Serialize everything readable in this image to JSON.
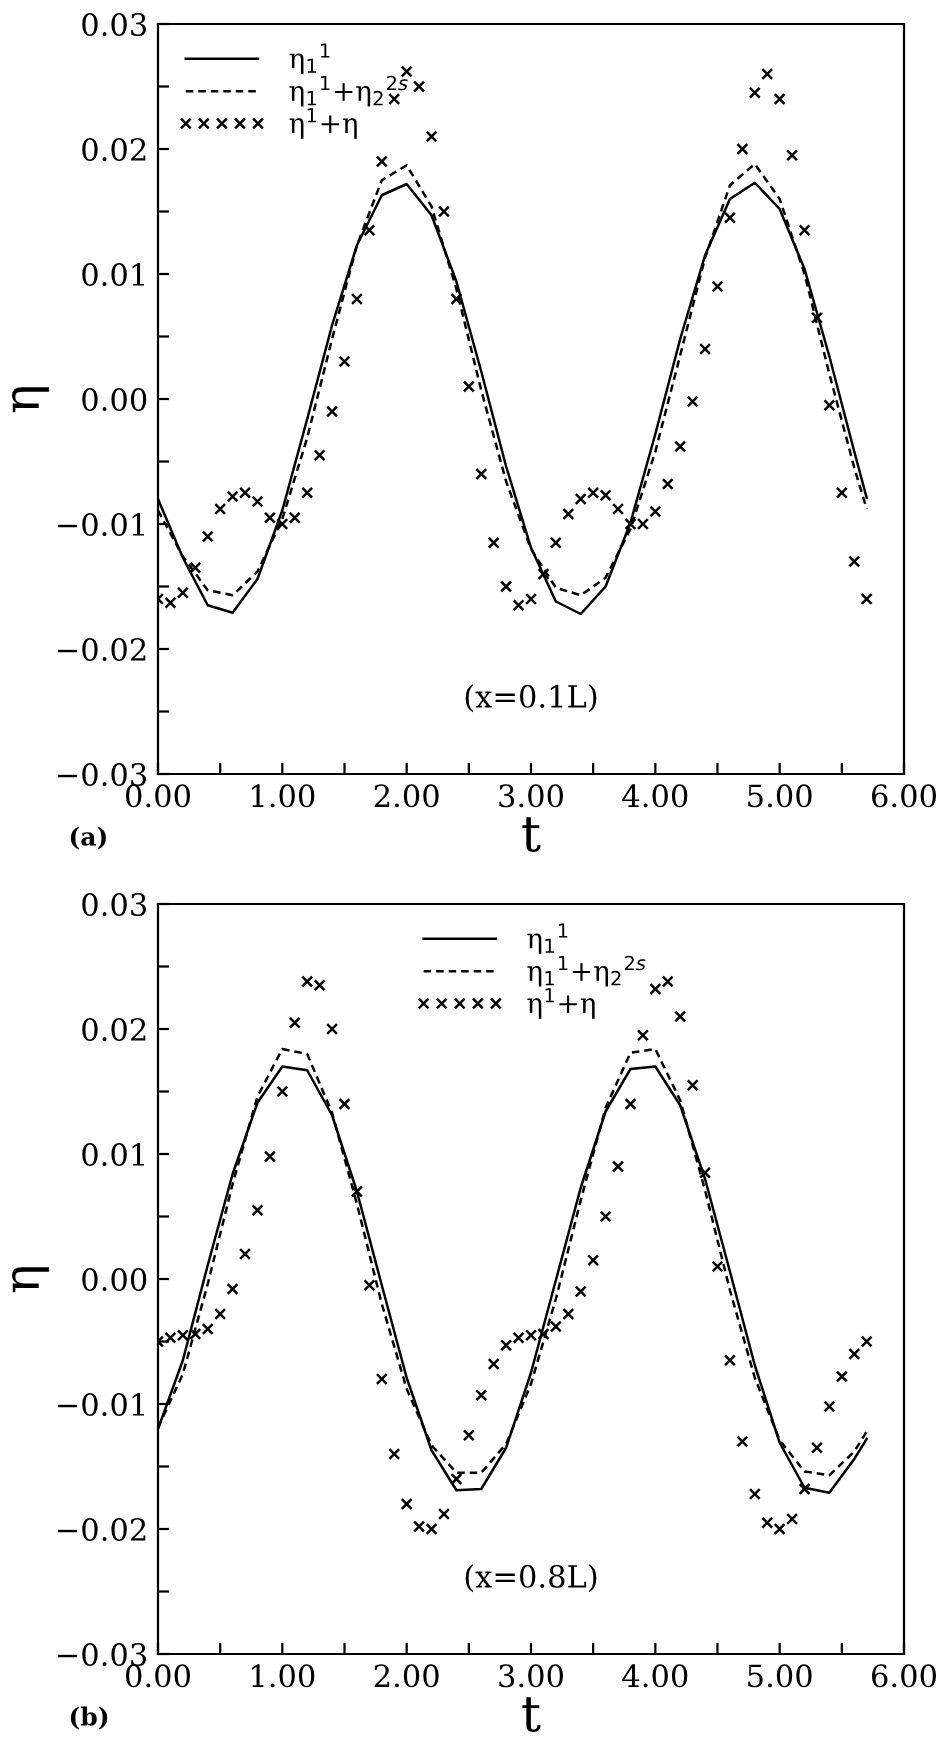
{
  "chart_data": [
    {
      "type": "line",
      "xlabel": "t",
      "ylabel": "η",
      "legend": "top left",
      "grid": false,
      "annotations": [
        "(x=0.1L)",
        "(a)"
      ],
      "xlim": [
        0,
        6
      ],
      "ylim": [
        -0.03,
        0.03
      ],
      "xticks": [
        {
          "value": 0,
          "label": "0.00"
        },
        {
          "value": 0.5,
          "label": null
        },
        {
          "value": 1,
          "label": "1.00"
        },
        {
          "value": 1.5,
          "label": null
        },
        {
          "value": 2,
          "label": "2.00"
        },
        {
          "value": 2.5,
          "label": null
        },
        {
          "value": 3,
          "label": "3.00"
        },
        {
          "value": 3.5,
          "label": null
        },
        {
          "value": 4,
          "label": "4.00"
        },
        {
          "value": 4.5,
          "label": null
        },
        {
          "value": 5,
          "label": "5.00"
        },
        {
          "value": 5.5,
          "label": null
        },
        {
          "value": 6,
          "label": "6.00"
        }
      ],
      "yticks": [
        {
          "value": -0.03,
          "label": "−0.03"
        },
        {
          "value": -0.025,
          "label": null
        },
        {
          "value": -0.02,
          "label": "−0.02"
        },
        {
          "value": -0.015,
          "label": null
        },
        {
          "value": -0.01,
          "label": "−0.01"
        },
        {
          "value": -0.005,
          "label": null
        },
        {
          "value": 0,
          "label": "0.00"
        },
        {
          "value": 0.005,
          "label": null
        },
        {
          "value": 0.01,
          "label": "0.01"
        },
        {
          "value": 0.015,
          "label": null
        },
        {
          "value": 0.02,
          "label": "0.02"
        },
        {
          "value": 0.025,
          "label": null
        },
        {
          "value": 0.03,
          "label": "0.03"
        }
      ],
      "series": [
        {
          "name": "η$_{1}$$^{1}$",
          "color": "#000000",
          "line_style": "solid",
          "marker": "none",
          "x": [
            0,
            0.2,
            0.4,
            0.6,
            0.8,
            1.0,
            1.2,
            1.4,
            1.6,
            1.8,
            2.0,
            2.2,
            2.4,
            2.6,
            2.8,
            3.0,
            3.2,
            3.4,
            3.6,
            3.8,
            4.0,
            4.2,
            4.4,
            4.6,
            4.8,
            5.0,
            5.2,
            5.4,
            5.6,
            5.7
          ],
          "values": [
            -0.008,
            -0.0127,
            -0.0165,
            -0.0171,
            -0.0144,
            -0.0089,
            -0.0016,
            0.0059,
            0.0123,
            0.0163,
            0.0172,
            0.0147,
            0.0094,
            0.0022,
            -0.0054,
            -0.0119,
            -0.0162,
            -0.0172,
            -0.015,
            -0.0099,
            -0.0028,
            0.0048,
            0.0115,
            0.016,
            0.0173,
            0.0152,
            0.0104,
            0.0034,
            -0.0042,
            -0.0079
          ]
        },
        {
          "name": "η$_{1}$$^{1}$+η$_{2}$$^{2s}$",
          "color": "#000000",
          "line_style": "dashed",
          "marker": "none",
          "x": [
            0,
            0.2,
            0.4,
            0.6,
            0.8,
            1.0,
            1.2,
            1.4,
            1.6,
            1.8,
            2.0,
            2.2,
            2.4,
            2.6,
            2.8,
            3.0,
            3.2,
            3.4,
            3.6,
            3.8,
            4.0,
            4.2,
            4.4,
            4.6,
            4.8,
            5.0,
            5.2,
            5.4,
            5.6,
            5.7
          ],
          "values": [
            -0.0089,
            -0.0126,
            -0.0153,
            -0.0157,
            -0.0138,
            -0.0096,
            -0.0031,
            0.0048,
            0.0123,
            0.0175,
            0.0187,
            0.0154,
            0.0088,
            0.0007,
            -0.0066,
            -0.012,
            -0.0151,
            -0.0157,
            -0.0143,
            -0.0104,
            -0.0042,
            0.0035,
            0.0113,
            0.0171,
            0.0188,
            0.016,
            0.01,
            0.002,
            -0.0055,
            -0.0088
          ]
        },
        {
          "name": "η$^{1}$+η",
          "type": "scatter",
          "color": "#000000",
          "marker": "cross",
          "x": [
            0,
            0.1,
            0.2,
            0.3,
            0.4,
            0.5,
            0.6,
            0.7,
            0.8,
            0.9,
            1.0,
            1.1,
            1.2,
            1.3,
            1.4,
            1.5,
            1.6,
            1.7,
            1.8,
            1.9,
            2.0,
            2.1,
            2.2,
            2.3,
            2.4,
            2.5,
            2.6,
            2.7,
            2.8,
            2.9,
            3.0,
            3.1,
            3.2,
            3.3,
            3.4,
            3.5,
            3.6,
            3.7,
            3.8,
            3.9,
            4.0,
            4.1,
            4.2,
            4.3,
            4.4,
            4.5,
            4.6,
            4.7,
            4.8,
            4.9,
            5.0,
            5.1,
            5.2,
            5.3,
            5.4,
            5.5,
            5.6,
            5.7
          ],
          "values": [
            -0.016,
            -0.0163,
            -0.0155,
            -0.0135,
            -0.011,
            -0.0088,
            -0.0078,
            -0.0075,
            -0.0082,
            -0.0095,
            -0.01,
            -0.0095,
            -0.0075,
            -0.0045,
            -0.001,
            0.003,
            0.008,
            0.0135,
            0.019,
            0.024,
            0.0262,
            0.025,
            0.021,
            0.015,
            0.008,
            0.001,
            -0.006,
            -0.0115,
            -0.015,
            -0.0165,
            -0.016,
            -0.014,
            -0.0115,
            -0.0092,
            -0.008,
            -0.0075,
            -0.0077,
            -0.0088,
            -0.01,
            -0.01,
            -0.009,
            -0.0068,
            -0.0038,
            -0.0002,
            0.004,
            0.009,
            0.0145,
            0.02,
            0.0245,
            0.026,
            0.024,
            0.0195,
            0.0135,
            0.0065,
            -0.0005,
            -0.0075,
            -0.013,
            -0.016
          ]
        }
      ]
    },
    {
      "type": "line",
      "xlabel": "t",
      "ylabel": "η",
      "legend": "top",
      "grid": false,
      "annotations": [
        "(x=0.8L)",
        "(b)"
      ],
      "xlim": [
        0,
        6
      ],
      "ylim": [
        -0.03,
        0.03
      ],
      "xticks": [
        {
          "value": 0,
          "label": "0.00"
        },
        {
          "value": 0.5,
          "label": null
        },
        {
          "value": 1,
          "label": "1.00"
        },
        {
          "value": 1.5,
          "label": null
        },
        {
          "value": 2,
          "label": "2.00"
        },
        {
          "value": 2.5,
          "label": null
        },
        {
          "value": 3,
          "label": "3.00"
        },
        {
          "value": 3.5,
          "label": null
        },
        {
          "value": 4,
          "label": "4.00"
        },
        {
          "value": 4.5,
          "label": null
        },
        {
          "value": 5,
          "label": "5.00"
        },
        {
          "value": 5.5,
          "label": null
        },
        {
          "value": 6,
          "label": "6.00"
        }
      ],
      "yticks": [
        {
          "value": -0.03,
          "label": "−0.03"
        },
        {
          "value": -0.025,
          "label": null
        },
        {
          "value": -0.02,
          "label": "−0.02"
        },
        {
          "value": -0.015,
          "label": null
        },
        {
          "value": -0.01,
          "label": "−0.01"
        },
        {
          "value": -0.005,
          "label": null
        },
        {
          "value": 0,
          "label": "0.00"
        },
        {
          "value": 0.005,
          "label": null
        },
        {
          "value": 0.01,
          "label": "0.01"
        },
        {
          "value": 0.015,
          "label": null
        },
        {
          "value": 0.02,
          "label": "0.02"
        },
        {
          "value": 0.025,
          "label": null
        },
        {
          "value": 0.03,
          "label": "0.03"
        }
      ],
      "series": [
        {
          "name": "η$_{1}$$^{1}$",
          "color": "#000000",
          "line_style": "solid",
          "marker": "none",
          "x": [
            0,
            0.2,
            0.4,
            0.6,
            0.8,
            1.0,
            1.2,
            1.4,
            1.6,
            1.8,
            2.0,
            2.2,
            2.4,
            2.6,
            2.8,
            3.0,
            3.2,
            3.4,
            3.6,
            3.8,
            4.0,
            4.2,
            4.4,
            4.6,
            4.8,
            5.0,
            5.2,
            5.4,
            5.6,
            5.7
          ],
          "values": [
            -0.012,
            -0.0065,
            0.0011,
            0.0084,
            0.0141,
            0.017,
            0.0167,
            0.0131,
            0.007,
            -0.0005,
            -0.0079,
            -0.0137,
            -0.0169,
            -0.0168,
            -0.0135,
            -0.0075,
            -0.0001,
            0.0073,
            0.0134,
            0.0168,
            0.017,
            0.0139,
            0.008,
            0.0006,
            -0.0069,
            -0.0131,
            -0.0167,
            -0.0171,
            -0.0144,
            -0.0128
          ]
        },
        {
          "name": "η$_{1}$$^{1}$+η$_{2}$$^{2s}$",
          "color": "#000000",
          "line_style": "dashed",
          "marker": "none",
          "x": [
            0,
            0.2,
            0.4,
            0.6,
            0.8,
            1.0,
            1.2,
            1.4,
            1.6,
            1.8,
            2.0,
            2.2,
            2.4,
            2.6,
            2.8,
            3.0,
            3.2,
            3.4,
            3.6,
            3.8,
            4.0,
            4.2,
            4.4,
            4.6,
            4.8,
            5.0,
            5.2,
            5.4,
            5.6,
            5.7
          ],
          "values": [
            -0.0119,
            -0.0076,
            -0.0004,
            0.0076,
            0.0146,
            0.0184,
            0.018,
            0.0133,
            0.006,
            -0.002,
            -0.0088,
            -0.0133,
            -0.0155,
            -0.0155,
            -0.0132,
            -0.0084,
            -0.0016,
            0.0063,
            0.0137,
            0.0181,
            0.0184,
            0.0143,
            0.0071,
            -0.0009,
            -0.0079,
            -0.0129,
            -0.0154,
            -0.0157,
            -0.0138,
            -0.0122
          ]
        },
        {
          "name": "η$^{1}$+η",
          "type": "scatter",
          "color": "#000000",
          "marker": "cross",
          "x": [
            0,
            0.1,
            0.2,
            0.3,
            0.4,
            0.5,
            0.6,
            0.7,
            0.8,
            0.9,
            1.0,
            1.1,
            1.2,
            1.3,
            1.4,
            1.5,
            1.6,
            1.7,
            1.8,
            1.9,
            2.0,
            2.1,
            2.2,
            2.3,
            2.4,
            2.5,
            2.6,
            2.7,
            2.8,
            2.9,
            3.0,
            3.1,
            3.2,
            3.3,
            3.4,
            3.5,
            3.6,
            3.7,
            3.8,
            3.9,
            4.0,
            4.1,
            4.2,
            4.3,
            4.4,
            4.5,
            4.6,
            4.7,
            4.8,
            4.9,
            5.0,
            5.1,
            5.2,
            5.3,
            5.4,
            5.5,
            5.6,
            5.7
          ],
          "values": [
            -0.005,
            -0.0047,
            -0.0045,
            -0.0044,
            -0.004,
            -0.0028,
            -0.0008,
            0.002,
            0.0055,
            0.0098,
            0.015,
            0.0205,
            0.0238,
            0.0235,
            0.02,
            0.014,
            0.007,
            -0.0005,
            -0.008,
            -0.014,
            -0.018,
            -0.0198,
            -0.02,
            -0.0188,
            -0.016,
            -0.0125,
            -0.0093,
            -0.0068,
            -0.0053,
            -0.0047,
            -0.0045,
            -0.0044,
            -0.0038,
            -0.0028,
            -0.001,
            0.0015,
            0.005,
            0.009,
            0.014,
            0.0195,
            0.0232,
            0.0238,
            0.021,
            0.0155,
            0.0085,
            0.001,
            -0.0065,
            -0.013,
            -0.0172,
            -0.0195,
            -0.02,
            -0.0192,
            -0.0168,
            -0.0135,
            -0.0102,
            -0.0078,
            -0.006,
            -0.005
          ]
        }
      ]
    }
  ]
}
